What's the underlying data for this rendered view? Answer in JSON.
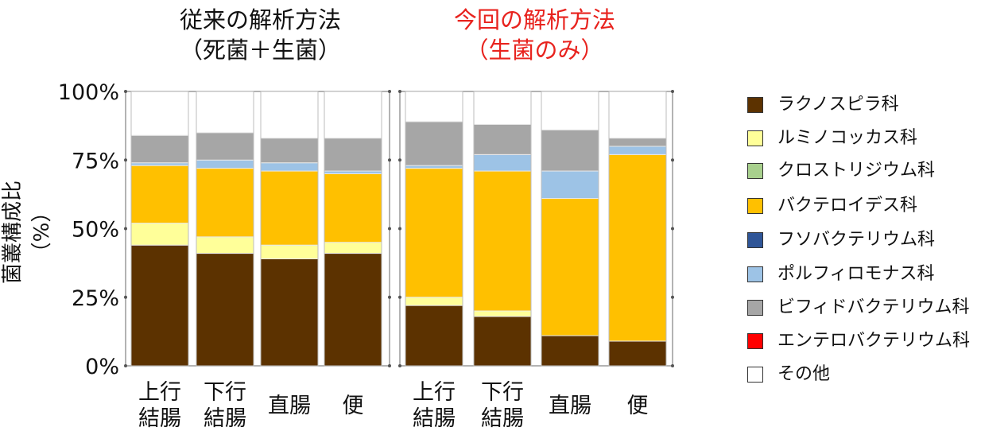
{
  "chart_data": {
    "type": "bar",
    "stacked": true,
    "ylabel": "菌叢構成比（%）",
    "ylim": [
      0,
      100
    ],
    "yticks": [
      "0%",
      "25%",
      "50%",
      "75%",
      "100%"
    ],
    "groups": [
      {
        "title_line1": "従来の解析方法",
        "title_line2": "（死菌＋生菌）",
        "color": "#111111"
      },
      {
        "title_line1": "今回の解析方法",
        "title_line2": "（生菌のみ）",
        "color": "#e8231e"
      }
    ],
    "categories": [
      {
        "line1": "上行",
        "line2": "結腸",
        "group": 0
      },
      {
        "line1": "下行",
        "line2": "結腸",
        "group": 0
      },
      {
        "line1": "直腸",
        "line2": "",
        "group": 0
      },
      {
        "line1": "便",
        "line2": "",
        "group": 0
      },
      {
        "line1": "上行",
        "line2": "結腸",
        "group": 1
      },
      {
        "line1": "下行",
        "line2": "結腸",
        "group": 1
      },
      {
        "line1": "直腸",
        "line2": "",
        "group": 1
      },
      {
        "line1": "便",
        "line2": "",
        "group": 1
      }
    ],
    "series": [
      {
        "name": "ラクノスピラ科",
        "color": "#5c3200",
        "values": [
          44,
          41,
          39,
          41,
          22,
          18,
          11,
          9
        ]
      },
      {
        "name": "ルミノコッカス科",
        "color": "#ffff99",
        "values": [
          8,
          6,
          5,
          4,
          3,
          2,
          0,
          0
        ]
      },
      {
        "name": "クロストリジウム科",
        "color": "#a8d08d",
        "values": [
          0,
          0,
          0,
          0,
          0,
          0,
          0,
          0
        ]
      },
      {
        "name": "バクテロイデス科",
        "color": "#ffc000",
        "values": [
          21,
          25,
          27,
          25,
          47,
          51,
          50,
          68
        ]
      },
      {
        "name": "フソバクテリウム科",
        "color": "#2f5597",
        "values": [
          0,
          0,
          0,
          0,
          0,
          0,
          0,
          0
        ]
      },
      {
        "name": "ポルフィロモナス科",
        "color": "#9dc3e6",
        "values": [
          1,
          3,
          3,
          1,
          1,
          6,
          10,
          3
        ]
      },
      {
        "name": "ビフィドバクテリウム科",
        "color": "#a6a6a6",
        "values": [
          10,
          10,
          9,
          12,
          16,
          11,
          15,
          3
        ]
      },
      {
        "name": "エンテロバクテリウム科",
        "color": "#ff0000",
        "values": [
          0,
          0,
          0,
          0,
          0,
          0,
          0,
          0
        ]
      },
      {
        "name": "その他",
        "color": "#ffffff",
        "values": [
          16,
          15,
          17,
          17,
          11,
          12,
          14,
          17
        ]
      }
    ]
  }
}
